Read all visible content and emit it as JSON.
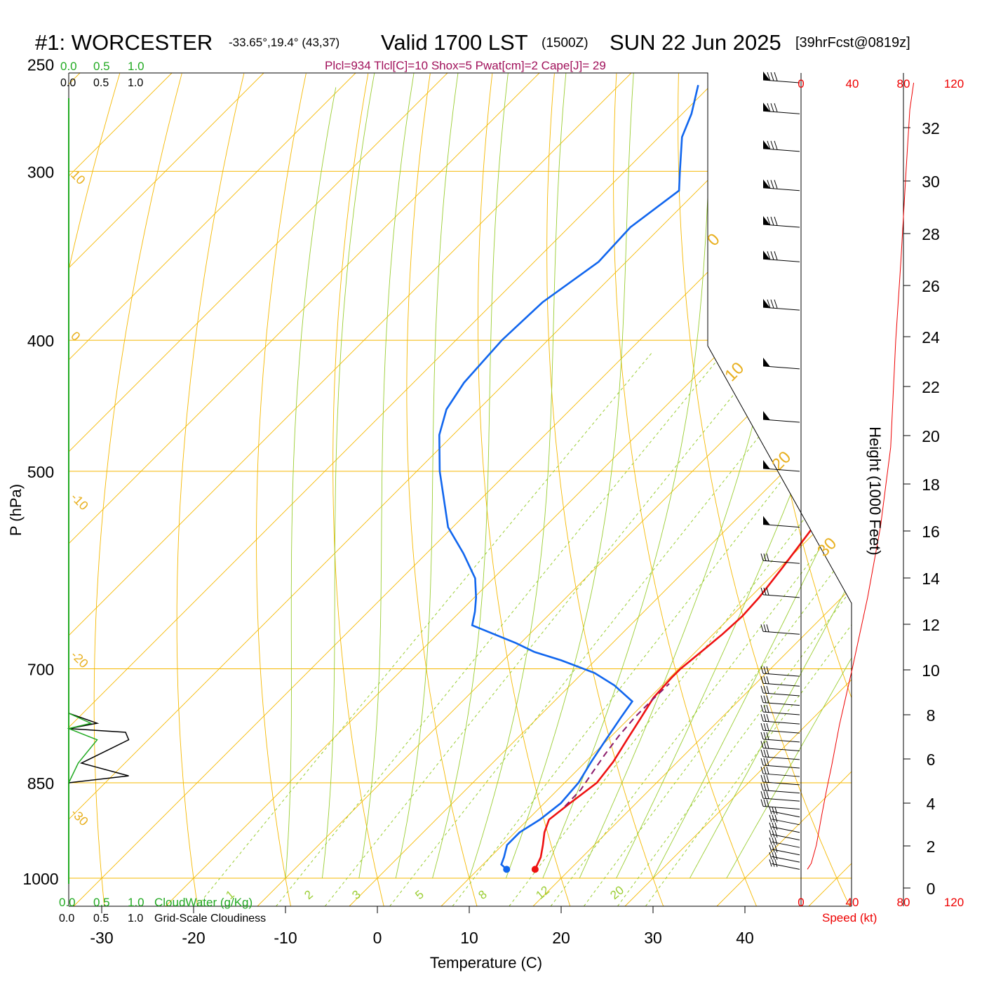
{
  "header": {
    "station": "#1: WORCESTER",
    "coords": "-33.65°,19.4° (43,37)",
    "valid": "Valid 1700 LST",
    "zulu": "(1500Z)",
    "date": "SUN 22 Jun 2025",
    "forecast": "[39hrFcst@0819z]",
    "params": "Plcl=934 Tlcl[C]=10 Shox=5 Pwat[cm]=2 Cape[J]= 29"
  },
  "colors": {
    "temperature": "#ee1111",
    "dewpoint": "#1166ee",
    "parcel": "#8b1a6b",
    "isobar": "#f5b800",
    "mixing_ratio": "#9acd32",
    "cloud_water": "#22aa22",
    "cloudiness": "#000000",
    "wind_speed": "#ee0000"
  },
  "top_scales": {
    "cloud_water": [
      "0.0",
      "0.5",
      "1.0"
    ],
    "cloudiness": [
      "0.0",
      "0.5",
      "1.0"
    ],
    "speed": [
      "0",
      "40",
      "80",
      "120"
    ]
  },
  "bottom_scales": {
    "cloud_water": [
      "0.0",
      "0.5",
      "1.0"
    ],
    "cloud_water_label": "CloudWater (g/Kg)",
    "cloudiness": [
      "0.0",
      "0.5",
      "1.0"
    ],
    "cloudiness_label": "Grid-Scale Cloudiness",
    "speed": [
      "0",
      "40",
      "80",
      "120"
    ],
    "speed_label": "Speed (kt)"
  },
  "chart_data": {
    "type": "line",
    "xlabel": "Temperature (C)",
    "ylabel": "P (hPa)",
    "y2label": "Height (1000 Feet)",
    "x_ticks": [
      -30,
      -20,
      -10,
      0,
      10,
      20,
      30,
      40
    ],
    "y_ticks": [
      250,
      300,
      400,
      500,
      700,
      850,
      1000
    ],
    "height_ticks": [
      0,
      2,
      4,
      6,
      8,
      10,
      12,
      14,
      16,
      18,
      20,
      22,
      24,
      26,
      28,
      30,
      32
    ],
    "isotherm_labels": [
      "10",
      "0",
      "-10",
      "-20",
      "-30"
    ],
    "theta_labels": [
      "0",
      "10",
      "20",
      "30"
    ],
    "mixing_ratio_labels": [
      "1",
      "2",
      "3",
      "5",
      "8",
      "12",
      "20"
    ],
    "series": [
      {
        "name": "Temperature",
        "points": [
          [
            16.2,
            985
          ],
          [
            15.5,
            965
          ],
          [
            14.4,
            945
          ],
          [
            13.2,
            925
          ],
          [
            12.3,
            905
          ],
          [
            12.8,
            880
          ],
          [
            13.5,
            850
          ],
          [
            13.0,
            820
          ],
          [
            12.1,
            790
          ],
          [
            11.2,
            760
          ],
          [
            10.4,
            735
          ],
          [
            10.2,
            710
          ],
          [
            10.2,
            700
          ],
          [
            10.6,
            680
          ],
          [
            11.0,
            660
          ],
          [
            11.2,
            640
          ],
          [
            11.0,
            620
          ],
          [
            10.3,
            590
          ],
          [
            9.5,
            560
          ],
          [
            8.6,
            530
          ],
          [
            7.4,
            500
          ],
          [
            5.9,
            470
          ],
          [
            4.4,
            450
          ],
          [
            1.8,
            420
          ],
          [
            -0.8,
            400
          ],
          [
            -4.3,
            370
          ],
          [
            -7.8,
            350
          ],
          [
            -13.5,
            320
          ],
          [
            -18.0,
            300
          ],
          [
            -23.0,
            280
          ],
          [
            -27.0,
            267
          ],
          [
            -30.8,
            258
          ]
        ]
      },
      {
        "name": "Dewpoint",
        "points": [
          [
            13.1,
            985
          ],
          [
            12.0,
            977
          ],
          [
            11.5,
            965
          ],
          [
            10.5,
            945
          ],
          [
            10.5,
            925
          ],
          [
            11.3,
            905
          ],
          [
            11.8,
            880
          ],
          [
            11.5,
            850
          ],
          [
            10.6,
            820
          ],
          [
            9.8,
            790
          ],
          [
            9.0,
            760
          ],
          [
            8.5,
            740
          ],
          [
            4.8,
            720
          ],
          [
            1.3,
            705
          ],
          [
            -3.7,
            690
          ],
          [
            -7.6,
            680
          ],
          [
            -10.5,
            670
          ],
          [
            -17.2,
            650
          ],
          [
            -18.4,
            635
          ],
          [
            -19.8,
            620
          ],
          [
            -22.0,
            600
          ],
          [
            -26.0,
            575
          ],
          [
            -30.5,
            550
          ],
          [
            -37.5,
            500
          ],
          [
            -41.5,
            470
          ],
          [
            -43.5,
            450
          ],
          [
            -44.5,
            430
          ],
          [
            -45.0,
            400
          ],
          [
            -44.7,
            375
          ],
          [
            -43.0,
            350
          ],
          [
            -43.3,
            330
          ],
          [
            -42.0,
            310
          ],
          [
            -44.0,
            300
          ],
          [
            -47.5,
            283
          ],
          [
            -49.0,
            272
          ],
          [
            -51.4,
            259
          ]
        ]
      },
      {
        "name": "Parcel",
        "points": [
          [
            12.6,
            885
          ],
          [
            12.5,
            860
          ],
          [
            11.9,
            835
          ],
          [
            11.3,
            810
          ],
          [
            10.8,
            785
          ],
          [
            10.5,
            760
          ],
          [
            10.5,
            740
          ],
          [
            10.6,
            718
          ]
        ]
      }
    ],
    "wind_speed_kt": [
      [
        5,
        985
      ],
      [
        8,
        975
      ],
      [
        12,
        945
      ],
      [
        16,
        900
      ],
      [
        20,
        860
      ],
      [
        24,
        825
      ],
      [
        30,
        770
      ],
      [
        40,
        700
      ],
      [
        52,
        620
      ],
      [
        62,
        550
      ],
      [
        70,
        480
      ],
      [
        74,
        400
      ],
      [
        78,
        350
      ],
      [
        82,
        300
      ],
      [
        85,
        270
      ],
      [
        88,
        258
      ]
    ],
    "cloudiness_profile": [
      [
        0.0,
        850
      ],
      [
        0.95,
        840
      ],
      [
        0.2,
        822
      ],
      [
        0.95,
        790
      ],
      [
        0.9,
        780
      ],
      [
        0.0,
        775
      ],
      [
        0.45,
        768
      ],
      [
        0.0,
        755
      ],
      [
        0.0,
        0
      ]
    ],
    "cloud_water_profile": [
      [
        0.0,
        850
      ],
      [
        0.15,
        822
      ],
      [
        0.45,
        790
      ],
      [
        0.0,
        775
      ],
      [
        0.35,
        768
      ],
      [
        0.0,
        755
      ]
    ]
  }
}
